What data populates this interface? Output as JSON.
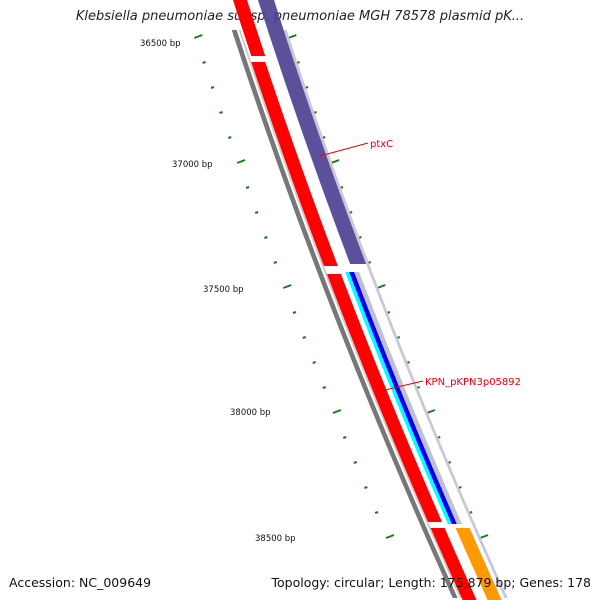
{
  "title": "Klebsiella pneumoniae subsp. pneumoniae MGH 78578 plasmid pK...",
  "footer": {
    "accession": "Accession: NC_009649",
    "summary": "Topology: circular; Length: 175,879 bp; Genes: 178"
  },
  "ruler": {
    "labels": [
      "36500 bp",
      "37000 bp",
      "37500 bp",
      "38000 bp",
      "38500 bp"
    ],
    "tick_color": "#1a7a1a"
  },
  "genes": {
    "ptxC": {
      "label": "ptxC"
    },
    "KPN_pKPN3p05892": {
      "label": "KPN_pKPN3p05892"
    }
  },
  "colors": {
    "backbone": "#777777",
    "reverse_cds": "#ff0000",
    "forward_cds": "#4b3d8f",
    "blue_feature": "#0000ee",
    "cyan_feature": "#00ffff",
    "orange_feature": "#ff9900",
    "label": "#e8000a"
  }
}
